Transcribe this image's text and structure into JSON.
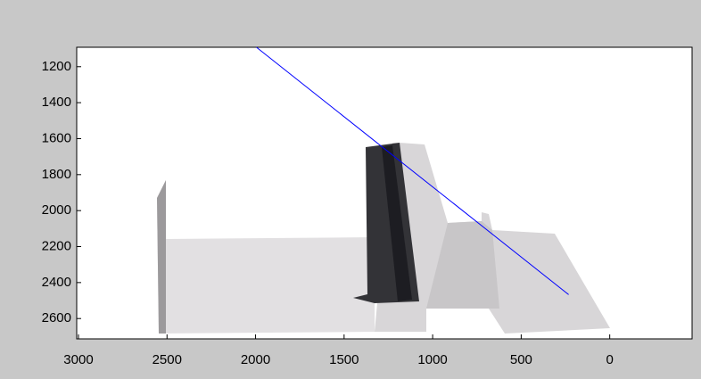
{
  "chart_data": {
    "type": "line",
    "x": [
      1995,
      232
    ],
    "series": [
      {
        "color": "#0000ff",
        "values": [
          1092,
          2467
        ]
      }
    ],
    "xlim": [
      3010,
      -465
    ],
    "ylim": [
      1092,
      2713
    ],
    "x_reversed": true,
    "y_reversed": true,
    "xticks": [
      3000,
      2500,
      2000,
      1500,
      1000,
      500,
      0
    ],
    "yticks": [
      1200,
      1400,
      1600,
      1800,
      2000,
      2200,
      2400,
      2600
    ],
    "grid": false
  }
}
